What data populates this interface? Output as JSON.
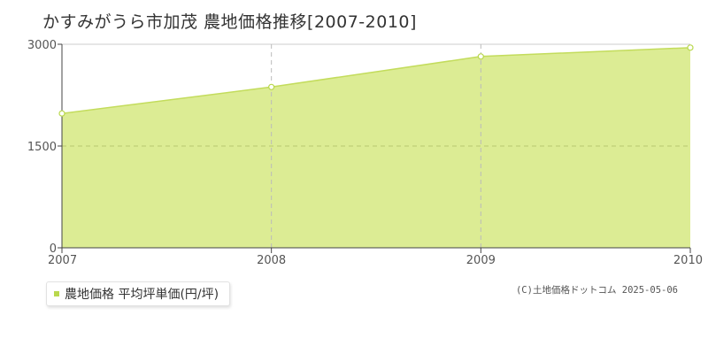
{
  "title": "かすみがうら市加茂 農地価格推移[2007-2010]",
  "legend": {
    "label": "農地価格 平均坪単価(円/坪)"
  },
  "copyright": "(C)土地価格ドットコム 2025-05-06",
  "colors": {
    "fill": "#dcec94",
    "line": "#c3dc5c",
    "marker_fill": "#ffffff",
    "marker_stroke": "#b9d84d",
    "grid": "#cccccc",
    "axis": "#444444",
    "legend_swatch": "#b9d84d"
  },
  "chart_data": {
    "type": "area",
    "title": "かすみがうら市加茂 農地価格推移[2007-2010]",
    "x": [
      "2007",
      "2008",
      "2009",
      "2010"
    ],
    "series": [
      {
        "name": "農地価格 平均坪単価(円/坪)",
        "values": [
          1980,
          2370,
          2820,
          2950
        ]
      }
    ],
    "ylim": [
      0,
      3000
    ],
    "yticks": [
      "0",
      "1500",
      "3000"
    ],
    "xlabel": "",
    "ylabel": "",
    "grid": true,
    "legend": "bottom-left"
  }
}
